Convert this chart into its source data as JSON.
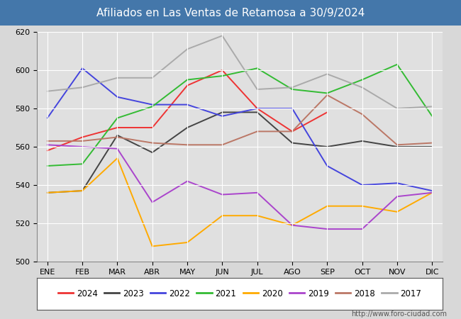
{
  "title": "Afiliados en Las Ventas de Retamosa a 30/9/2024",
  "title_color": "#ffffff",
  "title_bg": "#4477aa",
  "xlabel": "",
  "ylabel": "",
  "ylim": [
    500,
    620
  ],
  "yticks": [
    500,
    520,
    540,
    560,
    580,
    600,
    620
  ],
  "months": [
    "ENE",
    "FEB",
    "MAR",
    "ABR",
    "MAY",
    "JUN",
    "JUL",
    "AGO",
    "SEP",
    "OCT",
    "NOV",
    "DIC"
  ],
  "series": {
    "2024": {
      "color": "#ee3333",
      "data": [
        558,
        565,
        570,
        570,
        592,
        600,
        580,
        568,
        578,
        null,
        null,
        null
      ]
    },
    "2023": {
      "color": "#444444",
      "data": [
        536,
        537,
        566,
        557,
        570,
        578,
        578,
        562,
        560,
        563,
        560,
        560
      ]
    },
    "2022": {
      "color": "#4444dd",
      "data": [
        575,
        601,
        586,
        582,
        582,
        576,
        580,
        580,
        550,
        540,
        541,
        537
      ]
    },
    "2021": {
      "color": "#33bb33",
      "data": [
        550,
        551,
        575,
        581,
        595,
        597,
        601,
        590,
        588,
        595,
        603,
        576
      ]
    },
    "2020": {
      "color": "#ffaa00",
      "data": [
        536,
        537,
        554,
        508,
        510,
        524,
        524,
        519,
        529,
        529,
        526,
        536
      ]
    },
    "2019": {
      "color": "#aa44cc",
      "data": [
        561,
        560,
        559,
        531,
        542,
        535,
        536,
        519,
        517,
        517,
        534,
        536
      ]
    },
    "2018": {
      "color": "#bb7766",
      "data": [
        563,
        563,
        565,
        562,
        561,
        561,
        568,
        568,
        587,
        577,
        561,
        562
      ]
    },
    "2017": {
      "color": "#aaaaaa",
      "data": [
        589,
        591,
        596,
        596,
        611,
        618,
        590,
        591,
        598,
        591,
        580,
        581
      ]
    }
  },
  "url": "http://www.foro-ciudad.com",
  "plot_bg": "#e0e0e0",
  "fig_bg": "#d8d8d8",
  "grid_color": "#ffffff"
}
